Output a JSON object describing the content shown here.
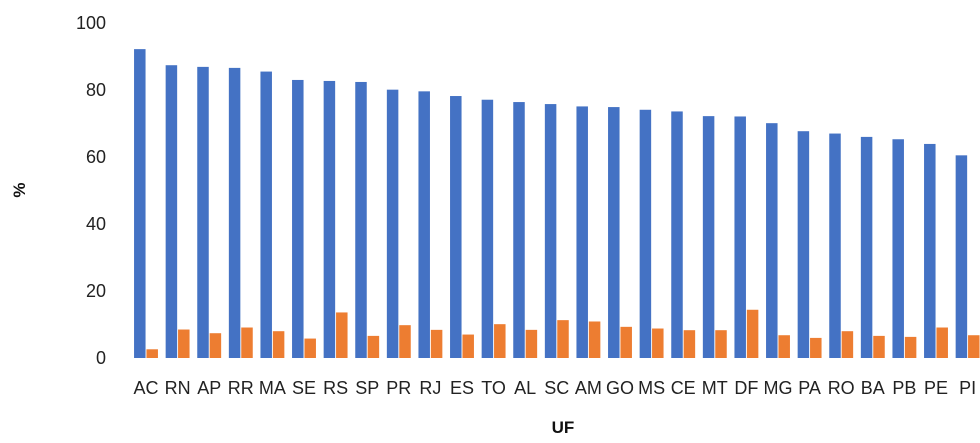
{
  "chart_data": {
    "type": "bar",
    "xlabel": "UF",
    "ylabel": "%",
    "ylim": [
      0,
      100
    ],
    "yticks": [
      "0",
      "20",
      "40",
      "60",
      "80",
      "100"
    ],
    "grid": false,
    "categories": [
      "AC",
      "RN",
      "AP",
      "RR",
      "MA",
      "SE",
      "RS",
      "SP",
      "PR",
      "RJ",
      "ES",
      "TO",
      "AL",
      "SC",
      "AM",
      "GO",
      "MS",
      "CE",
      "MT",
      "DF",
      "MG",
      "PA",
      "RO",
      "BA",
      "PB",
      "PE",
      "PI"
    ],
    "series": [
      {
        "color": "#4472C4",
        "values": [
          92.2,
          87.4,
          86.9,
          86.6,
          85.5,
          83.0,
          82.7,
          82.4,
          80.1,
          79.6,
          78.2,
          77.1,
          76.4,
          75.8,
          75.1,
          74.9,
          74.1,
          73.6,
          72.2,
          72.1,
          70.1,
          67.7,
          67.0,
          66.0,
          65.3,
          63.9,
          60.5
        ]
      },
      {
        "color": "#ED7D31",
        "values": [
          2.6,
          8.5,
          7.4,
          9.1,
          8.0,
          5.8,
          13.6,
          6.6,
          9.8,
          8.4,
          7.0,
          10.1,
          8.4,
          11.3,
          10.9,
          9.3,
          8.8,
          8.3,
          8.3,
          14.4,
          6.8,
          6.0,
          8.0,
          6.6,
          6.3,
          9.1,
          6.8
        ]
      }
    ]
  }
}
